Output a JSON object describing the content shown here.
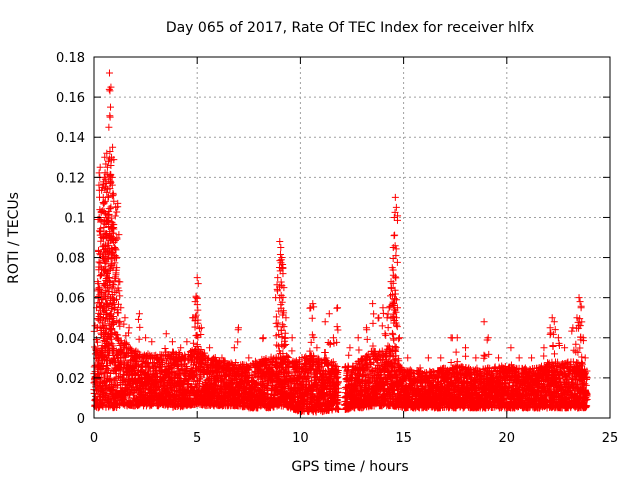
{
  "chart_data": {
    "type": "scatter",
    "title": "Day 065 of 2017, Rate Of TEC Index for receiver hlfx",
    "xlabel": "GPS time / hours",
    "ylabel": "ROTI / TECUs",
    "xlim": [
      0,
      25
    ],
    "ylim": [
      0,
      0.18
    ],
    "x_ticks": [
      0,
      5,
      10,
      15,
      20,
      25
    ],
    "y_ticks": [
      0,
      0.02,
      0.04,
      0.06,
      0.08,
      0.1,
      0.12,
      0.14,
      0.16,
      0.18
    ],
    "grid": true,
    "marker": "+",
    "color": "#ff0000",
    "series": [
      {
        "name": "ROTI",
        "points": [
          [
            0.05,
            0.046
          ],
          [
            0.12,
            0.055
          ],
          [
            0.18,
            0.068
          ],
          [
            0.22,
            0.083
          ],
          [
            0.25,
            0.1
          ],
          [
            0.28,
            0.12
          ],
          [
            0.3,
            0.125
          ],
          [
            0.35,
            0.103
          ],
          [
            0.38,
            0.09
          ],
          [
            0.42,
            0.115
          ],
          [
            0.45,
            0.11
          ],
          [
            0.48,
            0.095
          ],
          [
            0.5,
            0.12
          ],
          [
            0.52,
            0.13
          ],
          [
            0.55,
            0.108
          ],
          [
            0.58,
            0.1
          ],
          [
            0.6,
            0.092
          ],
          [
            0.62,
            0.132
          ],
          [
            0.65,
            0.125
          ],
          [
            0.68,
            0.11
          ],
          [
            0.7,
            0.128
          ],
          [
            0.72,
            0.145
          ],
          [
            0.75,
            0.172
          ],
          [
            0.78,
            0.15
          ],
          [
            0.8,
            0.155
          ],
          [
            0.82,
            0.165
          ],
          [
            0.85,
            0.13
          ],
          [
            0.88,
            0.12
          ],
          [
            0.9,
            0.135
          ],
          [
            0.92,
            0.112
          ],
          [
            0.95,
            0.095
          ],
          [
            1.0,
            0.085
          ],
          [
            1.05,
            0.105
          ],
          [
            1.1,
            0.075
          ],
          [
            1.15,
            0.107
          ],
          [
            1.2,
            0.068
          ],
          [
            1.3,
            0.055
          ],
          [
            1.5,
            0.05
          ],
          [
            1.7,
            0.045
          ],
          [
            2.2,
            0.052
          ],
          [
            2.5,
            0.04
          ],
          [
            2.8,
            0.038
          ],
          [
            3.5,
            0.042
          ],
          [
            3.8,
            0.038
          ],
          [
            4.2,
            0.035
          ],
          [
            4.5,
            0.038
          ],
          [
            4.8,
            0.05
          ],
          [
            4.9,
            0.058
          ],
          [
            4.95,
            0.06
          ],
          [
            5.0,
            0.07
          ],
          [
            5.05,
            0.067
          ],
          [
            5.2,
            0.045
          ],
          [
            5.6,
            0.035
          ],
          [
            6.2,
            0.03
          ],
          [
            6.8,
            0.035
          ],
          [
            7.0,
            0.045
          ],
          [
            7.5,
            0.03
          ],
          [
            8.2,
            0.04
          ],
          [
            8.8,
            0.06
          ],
          [
            8.9,
            0.07
          ],
          [
            9.0,
            0.088
          ],
          [
            9.05,
            0.085
          ],
          [
            9.1,
            0.08
          ],
          [
            9.15,
            0.075
          ],
          [
            9.2,
            0.065
          ],
          [
            9.3,
            0.05
          ],
          [
            9.6,
            0.04
          ],
          [
            10.2,
            0.03
          ],
          [
            10.5,
            0.055
          ],
          [
            10.6,
            0.057
          ],
          [
            10.8,
            0.035
          ],
          [
            11.2,
            0.048
          ],
          [
            11.4,
            0.052
          ],
          [
            11.6,
            0.04
          ],
          [
            11.8,
            0.055
          ],
          [
            12.4,
            0.035
          ],
          [
            12.8,
            0.04
          ],
          [
            13.2,
            0.045
          ],
          [
            13.5,
            0.057
          ],
          [
            13.8,
            0.05
          ],
          [
            14.0,
            0.055
          ],
          [
            14.1,
            0.042
          ],
          [
            14.2,
            0.05
          ],
          [
            14.3,
            0.055
          ],
          [
            14.4,
            0.065
          ],
          [
            14.45,
            0.075
          ],
          [
            14.5,
            0.085
          ],
          [
            14.55,
            0.1
          ],
          [
            14.6,
            0.11
          ],
          [
            14.65,
            0.105
          ],
          [
            14.7,
            0.055
          ],
          [
            14.8,
            0.04
          ],
          [
            15.2,
            0.03
          ],
          [
            15.8,
            0.025
          ],
          [
            16.2,
            0.03
          ],
          [
            16.8,
            0.03
          ],
          [
            17.3,
            0.04
          ],
          [
            17.6,
            0.04
          ],
          [
            18.0,
            0.035
          ],
          [
            18.5,
            0.03
          ],
          [
            18.9,
            0.048
          ],
          [
            19.1,
            0.04
          ],
          [
            19.6,
            0.03
          ],
          [
            20.2,
            0.035
          ],
          [
            20.6,
            0.03
          ],
          [
            21.2,
            0.03
          ],
          [
            21.8,
            0.035
          ],
          [
            22.1,
            0.045
          ],
          [
            22.2,
            0.05
          ],
          [
            22.3,
            0.048
          ],
          [
            22.5,
            0.04
          ],
          [
            22.8,
            0.035
          ],
          [
            23.2,
            0.045
          ],
          [
            23.4,
            0.05
          ],
          [
            23.5,
            0.06
          ],
          [
            23.55,
            0.058
          ],
          [
            23.6,
            0.055
          ],
          [
            23.7,
            0.04
          ],
          [
            23.8,
            0.03
          ]
        ],
        "base_band": [
          [
            0.0,
            0.005,
            0.035
          ],
          [
            0.5,
            0.005,
            0.045
          ],
          [
            1.0,
            0.005,
            0.045
          ],
          [
            1.5,
            0.006,
            0.038
          ],
          [
            2.0,
            0.006,
            0.034
          ],
          [
            2.5,
            0.006,
            0.032
          ],
          [
            3.0,
            0.006,
            0.032
          ],
          [
            3.5,
            0.006,
            0.033
          ],
          [
            4.0,
            0.005,
            0.033
          ],
          [
            4.5,
            0.006,
            0.032
          ],
          [
            5.0,
            0.007,
            0.036
          ],
          [
            5.5,
            0.006,
            0.031
          ],
          [
            6.0,
            0.006,
            0.03
          ],
          [
            6.5,
            0.006,
            0.028
          ],
          [
            7.0,
            0.006,
            0.028
          ],
          [
            7.5,
            0.005,
            0.026
          ],
          [
            8.0,
            0.005,
            0.03
          ],
          [
            8.5,
            0.005,
            0.03
          ],
          [
            9.0,
            0.006,
            0.034
          ],
          [
            9.5,
            0.005,
            0.03
          ],
          [
            10.0,
            0.003,
            0.03
          ],
          [
            10.5,
            0.003,
            0.032
          ],
          [
            11.0,
            0.003,
            0.03
          ],
          [
            11.5,
            0.004,
            0.028
          ],
          [
            11.85,
            0.004,
            0.025
          ],
          [
            12.2,
            0.004,
            0.026
          ],
          [
            12.5,
            0.005,
            0.026
          ],
          [
            13.0,
            0.005,
            0.03
          ],
          [
            13.5,
            0.006,
            0.034
          ],
          [
            14.0,
            0.006,
            0.032
          ],
          [
            14.5,
            0.006,
            0.036
          ],
          [
            15.0,
            0.005,
            0.024
          ],
          [
            15.5,
            0.005,
            0.024
          ],
          [
            16.0,
            0.005,
            0.023
          ],
          [
            16.5,
            0.005,
            0.024
          ],
          [
            17.0,
            0.005,
            0.025
          ],
          [
            17.5,
            0.005,
            0.026
          ],
          [
            18.0,
            0.005,
            0.026
          ],
          [
            18.5,
            0.005,
            0.025
          ],
          [
            19.0,
            0.005,
            0.025
          ],
          [
            19.5,
            0.005,
            0.026
          ],
          [
            20.0,
            0.005,
            0.026
          ],
          [
            20.5,
            0.005,
            0.025
          ],
          [
            21.0,
            0.005,
            0.025
          ],
          [
            21.5,
            0.005,
            0.025
          ],
          [
            22.0,
            0.005,
            0.028
          ],
          [
            22.5,
            0.005,
            0.028
          ],
          [
            23.0,
            0.005,
            0.028
          ],
          [
            23.5,
            0.005,
            0.028
          ],
          [
            23.9,
            0.005,
            0.025
          ]
        ],
        "gap_hours": [
          11.85,
          12.15
        ]
      }
    ]
  }
}
